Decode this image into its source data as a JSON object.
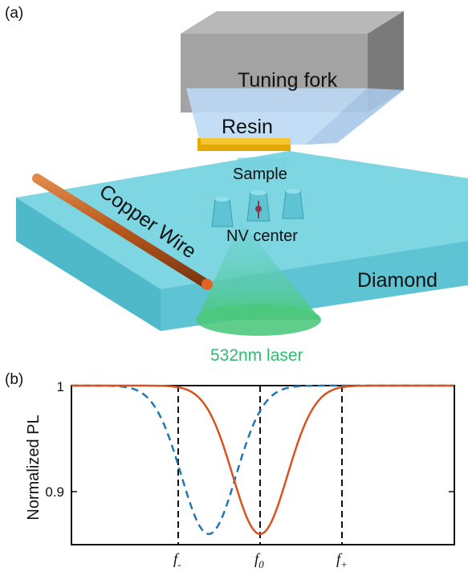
{
  "panel_a": {
    "label": "(a)",
    "tuning_fork": "Tuning fork",
    "resin": "Resin",
    "sample": "Sample",
    "copper_wire": "Copper Wire",
    "nv_center": "NV center",
    "diamond": "Diamond",
    "laser": "532nm laser",
    "colors": {
      "tuning_fork": "#a6a6a6",
      "resin": "#bcd9f5",
      "sample": "#f0b400",
      "diamond": "#6fd0de",
      "copper": "#b5561c",
      "laser": "#5fd189"
    }
  },
  "panel_b": {
    "label": "(b)",
    "chart_data": {
      "type": "line",
      "ylabel": "Normalized PL",
      "ylim": [
        0.85,
        1.0
      ],
      "yticks": [
        "0.9",
        "1"
      ],
      "xticks": [
        {
          "main": "f",
          "sub": "-"
        },
        {
          "main": "f",
          "sub": "0"
        },
        {
          "main": "f",
          "sub": "+"
        }
      ],
      "series": [
        {
          "style": "solid",
          "color": "#d9531e",
          "depth": 0.14,
          "center": "f0"
        },
        {
          "style": "dashed",
          "color": "#1f77b4",
          "depth": 0.14,
          "center": "between f- and f0"
        }
      ],
      "vlines": [
        "f-",
        "f0",
        "f+"
      ]
    }
  }
}
